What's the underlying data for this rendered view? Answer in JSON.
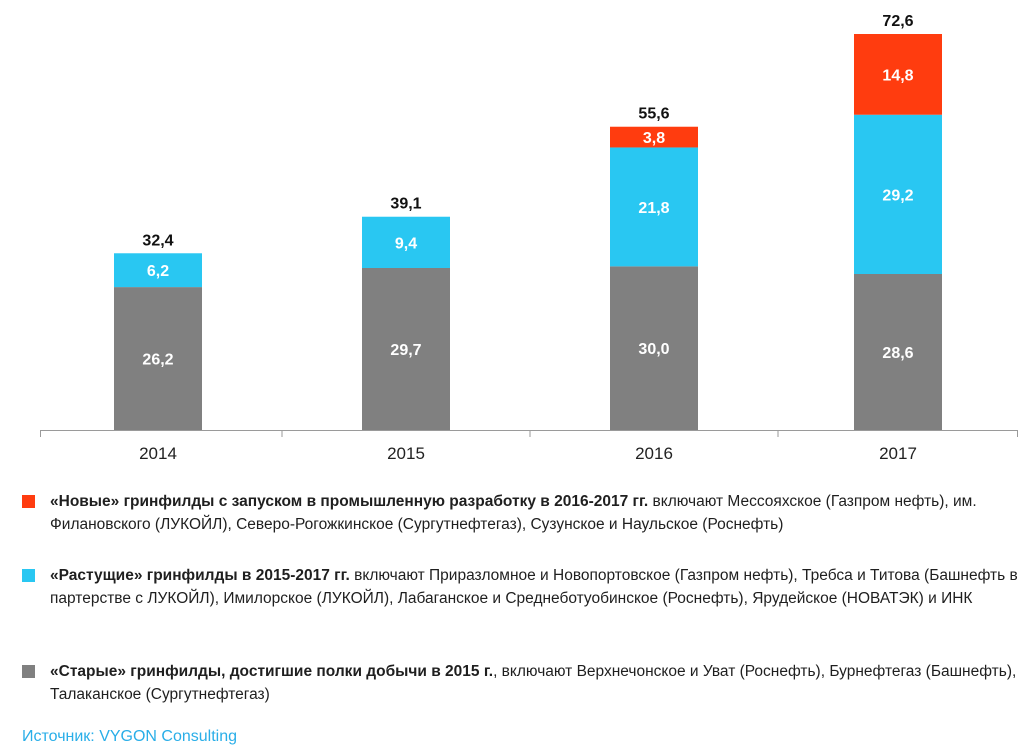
{
  "chart_data": {
    "type": "bar",
    "stacked": true,
    "categories": [
      "2014",
      "2015",
      "2016",
      "2017"
    ],
    "series": [
      {
        "name": "«Старые» гринфилды, достигшие полки добычи в 2015 г.",
        "color": "#808080",
        "values": [
          26.2,
          29.7,
          30.0,
          28.6
        ],
        "labels": [
          "26,2",
          "29,7",
          "30,0",
          "28,6"
        ]
      },
      {
        "name": "«Растущие» гринфилды в 2015-2017 гг.",
        "color": "#29c7f2",
        "values": [
          6.2,
          9.4,
          21.8,
          29.2
        ],
        "labels": [
          "6,2",
          "9,4",
          "21,8",
          "29,2"
        ]
      },
      {
        "name": "«Новые» гринфилды с запуском в промышленную разработку в 2016-2017 гг.",
        "color": "#ff3c0f",
        "values": [
          null,
          null,
          3.8,
          14.8
        ],
        "labels": [
          "",
          "",
          "3,8",
          "14,8"
        ]
      }
    ],
    "totals": [
      32.4,
      39.1,
      55.6,
      72.6
    ],
    "total_labels": [
      "32,4",
      "39,1",
      "55,6",
      "72,6"
    ],
    "ylim": [
      0,
      72.6
    ],
    "grid": false,
    "legend_position": "bottom"
  },
  "legend": [
    {
      "color": "#ff3c0f",
      "bold": "«Новые» гринфилды с запуском в промышленную разработку в 2016-2017 гг.",
      "text": " включают Мессояхское (Газпром нефть), им. Филановского (ЛУКОЙЛ), Северо-Рогожкинское (Сургутнефтегаз), Сузунское и Наульское (Роснефть)"
    },
    {
      "color": "#29c7f2",
      "bold": "«Растущие» гринфилды в 2015-2017 гг.",
      "text": " включают Приразломное и Новопортовское (Газпром нефть), Требса и Титова (Башнефть в партерстве с ЛУКОЙЛ), Имилорское (ЛУКОЙЛ), Лабаганское и Среднеботуобинское (Роснефть), Ярудейское (НОВАТЭК) и ИНК"
    },
    {
      "color": "#808080",
      "bold": "«Старые» гринфилды, достигшие полки добычи в 2015 г.",
      "text": ", включают Верхнечонское и Уват (Роснефть), Бурнефтегаз (Башнефть), Талаканское (Сургутнефтегаз)"
    }
  ],
  "source": "Источник: VYGON Consulting"
}
